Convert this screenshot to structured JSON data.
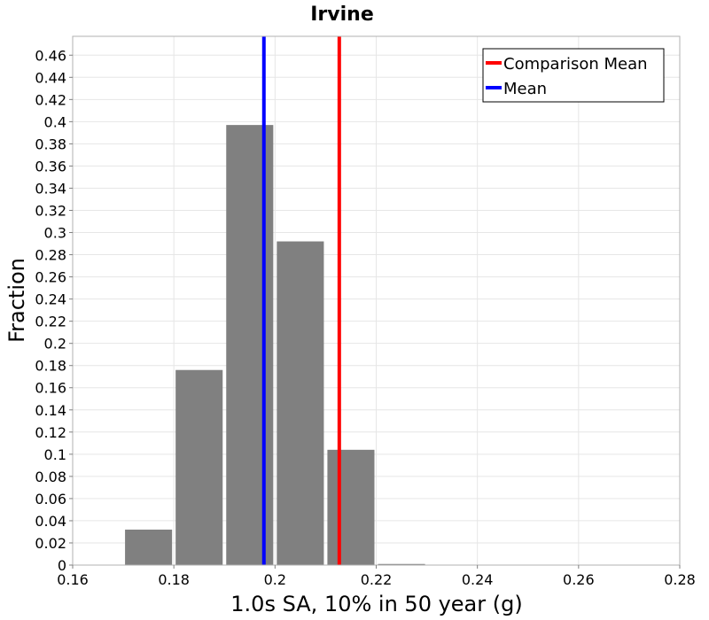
{
  "chart_data": {
    "type": "bar",
    "title": "Irvine",
    "xlabel": "1.0s SA, 10% in 50 year (g)",
    "ylabel": "Fraction",
    "xlim": [
      0.16,
      0.28
    ],
    "ylim": [
      0,
      0.477
    ],
    "xticks": [
      {
        "value": 0.16,
        "label": "0.16"
      },
      {
        "value": 0.18,
        "label": "0.18"
      },
      {
        "value": 0.2,
        "label": "0.2"
      },
      {
        "value": 0.22,
        "label": "0.22"
      },
      {
        "value": 0.24,
        "label": "0.24"
      },
      {
        "value": 0.26,
        "label": "0.26"
      },
      {
        "value": 0.28,
        "label": "0.28"
      }
    ],
    "yticks": [
      {
        "value": 0,
        "label": "0"
      },
      {
        "value": 0.02,
        "label": "0.02"
      },
      {
        "value": 0.04,
        "label": "0.04"
      },
      {
        "value": 0.06,
        "label": "0.06"
      },
      {
        "value": 0.08,
        "label": "0.08"
      },
      {
        "value": 0.1,
        "label": "0.1"
      },
      {
        "value": 0.12,
        "label": "0.12"
      },
      {
        "value": 0.14,
        "label": "0.14"
      },
      {
        "value": 0.16,
        "label": "0.16"
      },
      {
        "value": 0.18,
        "label": "0.18"
      },
      {
        "value": 0.2,
        "label": "0.2"
      },
      {
        "value": 0.22,
        "label": "0.22"
      },
      {
        "value": 0.24,
        "label": "0.24"
      },
      {
        "value": 0.26,
        "label": "0.26"
      },
      {
        "value": 0.28,
        "label": "0.28"
      },
      {
        "value": 0.3,
        "label": "0.3"
      },
      {
        "value": 0.32,
        "label": "0.32"
      },
      {
        "value": 0.34,
        "label": "0.34"
      },
      {
        "value": 0.36,
        "label": "0.36"
      },
      {
        "value": 0.38,
        "label": "0.38"
      },
      {
        "value": 0.4,
        "label": "0.4"
      },
      {
        "value": 0.42,
        "label": "0.42"
      },
      {
        "value": 0.44,
        "label": "0.44"
      },
      {
        "value": 0.46,
        "label": "0.46"
      }
    ],
    "bins": [
      {
        "start": 0.16,
        "end": 0.17,
        "value": 0.0
      },
      {
        "start": 0.17,
        "end": 0.18,
        "value": 0.032
      },
      {
        "start": 0.18,
        "end": 0.19,
        "value": 0.176
      },
      {
        "start": 0.19,
        "end": 0.2,
        "value": 0.397
      },
      {
        "start": 0.2,
        "end": 0.21,
        "value": 0.292
      },
      {
        "start": 0.21,
        "end": 0.22,
        "value": 0.104
      },
      {
        "start": 0.22,
        "end": 0.23,
        "value": 0.001
      }
    ],
    "bar_color": "#808080",
    "reference_lines": [
      {
        "name": "Comparison Mean",
        "x": 0.2127,
        "color": "#ff0000"
      },
      {
        "name": "Mean",
        "x": 0.1978,
        "color": "#0000ff"
      }
    ],
    "grid": true,
    "legend_position": "top-right"
  }
}
